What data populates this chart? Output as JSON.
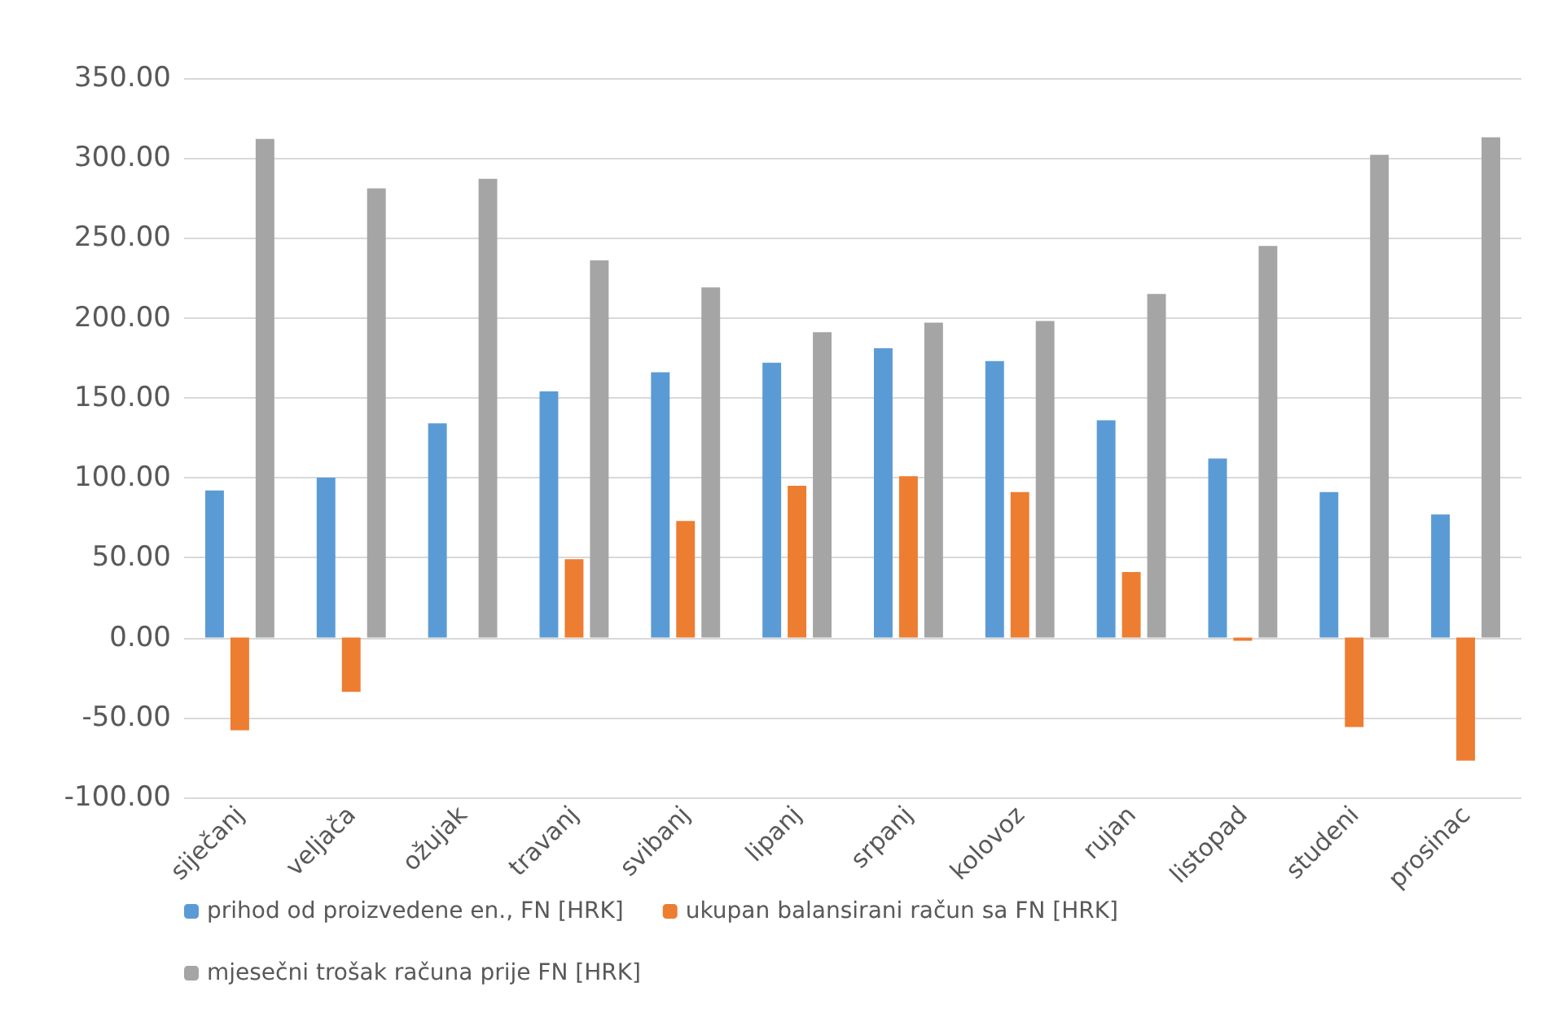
{
  "chart_data": {
    "type": "bar",
    "categories": [
      "siječanj",
      "veljača",
      "ožujak",
      "travanj",
      "svibanj",
      "lipanj",
      "srpanj",
      "kolovoz",
      "rujan",
      "listopad",
      "studeni",
      "prosinac"
    ],
    "series": [
      {
        "name": "prihod od proizvedene en., FN [HRK]",
        "color": "#5b9bd5",
        "values": [
          92,
          100,
          134,
          154,
          166,
          172,
          181,
          173,
          136,
          112,
          91,
          77
        ]
      },
      {
        "name": "ukupan balansirani račun sa FN [HRK]",
        "color": "#ed7d31",
        "values": [
          -58,
          -34,
          0,
          49,
          73,
          95,
          101,
          91,
          41,
          -2,
          -56,
          -77
        ]
      },
      {
        "name": "mjesečni trošak računa prije FN [HRK]",
        "color": "#a5a5a5",
        "values": [
          312,
          281,
          287,
          236,
          219,
          191,
          197,
          198,
          215,
          245,
          302,
          313
        ]
      }
    ],
    "ylim": [
      -100,
      350
    ],
    "yticks": [
      {
        "value": -100,
        "label": "-100.00"
      },
      {
        "value": -50,
        "label": "-50.00"
      },
      {
        "value": 0,
        "label": "0.00"
      },
      {
        "value": 50,
        "label": "50.00"
      },
      {
        "value": 100,
        "label": "100.00"
      },
      {
        "value": 150,
        "label": "150.00"
      },
      {
        "value": 200,
        "label": "200.00"
      },
      {
        "value": 250,
        "label": "250.00"
      },
      {
        "value": 300,
        "label": "300.00"
      },
      {
        "value": 350,
        "label": "350.00"
      }
    ],
    "grid": "y",
    "legend": "bottom"
  }
}
